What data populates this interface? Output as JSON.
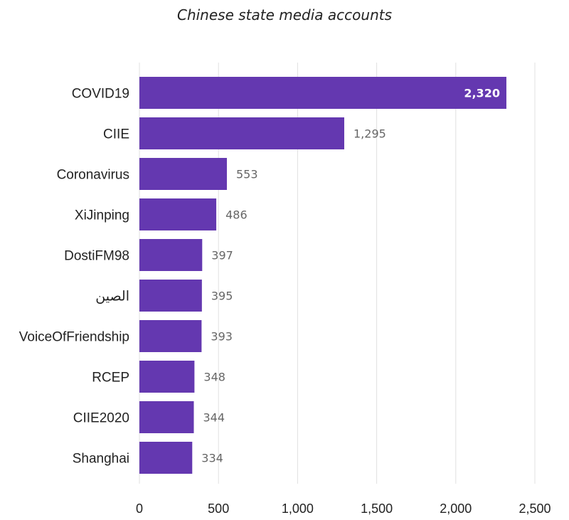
{
  "chart_data": {
    "type": "bar",
    "orientation": "horizontal",
    "title": "Chinese state media accounts",
    "xlabel": "",
    "ylabel": "",
    "categories": [
      "COVID19",
      "CIIE",
      "Coronavirus",
      "XiJinping",
      "DostiFM98",
      "الصين",
      "VoiceOfFriendship",
      "RCEP",
      "CIIE2020",
      "Shanghai"
    ],
    "values": [
      2320,
      1295,
      553,
      486,
      397,
      395,
      393,
      348,
      344,
      334
    ],
    "value_labels": [
      "2,320",
      "1,295",
      "553",
      "486",
      "397",
      "395",
      "393",
      "348",
      "344",
      "334"
    ],
    "xlim": [
      0,
      2500
    ],
    "xticks": [
      0,
      500,
      1000,
      1500,
      2000,
      2500
    ],
    "xtick_labels": [
      "0",
      "500",
      "1,000",
      "1,500",
      "2,000",
      "2,500"
    ],
    "grid": "vertical",
    "legend": "none",
    "bar_color": "#6438b0"
  }
}
